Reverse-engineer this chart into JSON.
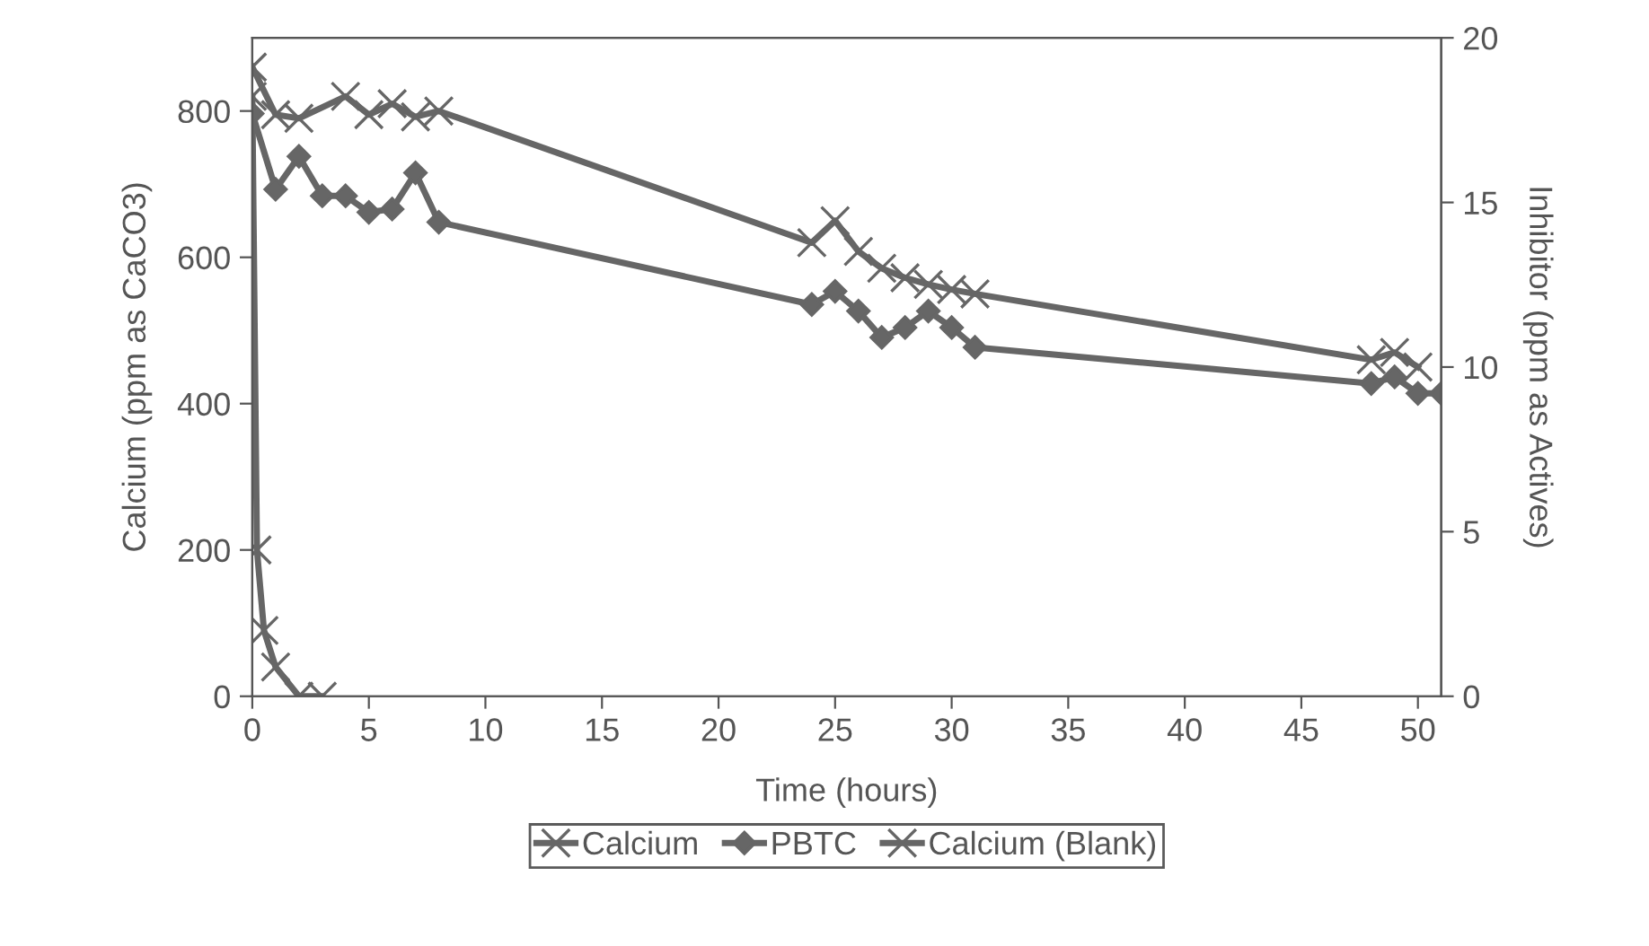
{
  "chart_data": {
    "type": "line",
    "xlabel": "Time (hours)",
    "ylabel": "Calcium (ppm as CaCO3)",
    "y2label": "Inhibitor (ppm as Actives)",
    "xlim": [
      0,
      51
    ],
    "xticks": [
      0,
      5,
      10,
      15,
      20,
      25,
      30,
      35,
      40,
      45,
      50
    ],
    "ylim": [
      0,
      900
    ],
    "yticks": [
      0,
      200,
      400,
      600,
      800
    ],
    "y2lim": [
      0,
      20
    ],
    "y2ticks": [
      0,
      5,
      10,
      15,
      20
    ],
    "grid": false,
    "legend": "bottom",
    "line_style": "solid",
    "series": [
      {
        "name": "Calcium",
        "color": "#666666",
        "marker": "cross",
        "x": [
          0,
          1,
          2,
          4,
          5,
          6,
          7,
          8,
          24,
          25,
          26,
          27,
          28,
          29,
          30,
          31,
          48,
          49,
          50
        ],
        "values": [
          860,
          795,
          790,
          820,
          795,
          810,
          792,
          800,
          620,
          650,
          608,
          585,
          572,
          563,
          556,
          550,
          460,
          470,
          450
        ]
      },
      {
        "name": "PBTC",
        "color": "#666666",
        "marker": "diamond",
        "axis": "y2",
        "x": [
          0,
          1,
          2,
          3,
          4,
          5,
          6,
          7,
          8,
          24,
          25,
          26,
          27,
          28,
          29,
          30,
          31,
          48,
          49,
          50,
          51
        ],
        "values": [
          17.7,
          15.4,
          16.4,
          15.2,
          15.2,
          14.7,
          14.8,
          15.9,
          14.4,
          11.9,
          12.3,
          11.7,
          10.9,
          11.2,
          11.7,
          11.2,
          10.6,
          9.5,
          9.7,
          9.2,
          9.2
        ]
      },
      {
        "name": "Calcium (Blank)",
        "color": "#666666",
        "marker": "cross",
        "x": [
          0,
          0.2,
          0.5,
          1,
          2,
          3
        ],
        "values": [
          820,
          200,
          90,
          40,
          0,
          0
        ]
      }
    ]
  }
}
